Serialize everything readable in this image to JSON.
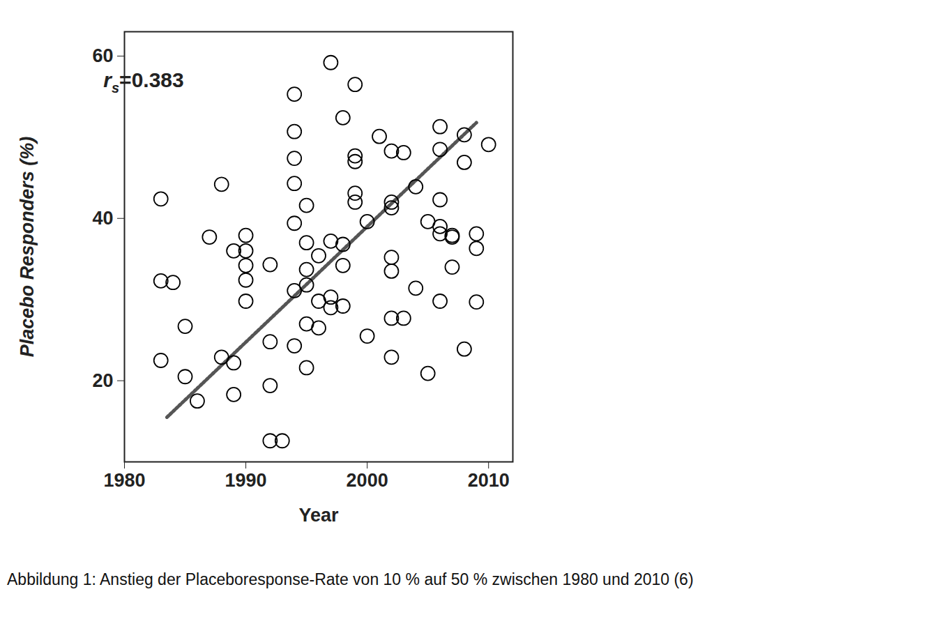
{
  "chart_data": {
    "type": "scatter",
    "xlabel": "Year",
    "ylabel": "Placebo Responders (%)",
    "caption": "Abbildung 1: Anstieg der Placeboresponse-Rate von 10 % auf 50 % zwischen 1980 und 2010 (6)",
    "annotation": {
      "symbol": "r",
      "subscript": "s",
      "text": "=0.383"
    },
    "marker": "open circle",
    "color": "#000000",
    "x": [
      1983,
      1983,
      1984,
      1983,
      1985,
      1985,
      1986,
      1987,
      1988,
      1988,
      1989,
      1989,
      1989,
      1990,
      1990,
      1990,
      1990,
      1990,
      1992,
      1992,
      1992,
      1992,
      1993,
      1994,
      1994,
      1994,
      1994,
      1994,
      1994,
      1994,
      1995,
      1995,
      1995,
      1995,
      1995,
      1995,
      1996,
      1996,
      1996,
      1997,
      1997,
      1997,
      1997,
      1998,
      1998,
      1998,
      1998,
      1999,
      1999,
      1999,
      1999,
      1999,
      2000,
      2000,
      2001,
      2002,
      2002,
      2002,
      2002,
      2002,
      2002,
      2002,
      2003,
      2003,
      2004,
      2004,
      2005,
      2005,
      2006,
      2006,
      2006,
      2006,
      2006,
      2006,
      2007,
      2007,
      2007,
      2008,
      2008,
      2008,
      2009,
      2009,
      2009,
      2010
    ],
    "values": [
      42.4,
      32.3,
      32.1,
      22.5,
      26.7,
      20.5,
      17.5,
      37.7,
      44.2,
      22.9,
      36,
      22.2,
      18.3,
      37.9,
      36,
      34.2,
      32.4,
      29.8,
      34.3,
      24.8,
      19.4,
      12.6,
      12.6,
      55.3,
      50.7,
      47.4,
      44.3,
      39.4,
      31.1,
      24.3,
      41.6,
      37,
      33.7,
      27,
      21.6,
      31.8,
      35.4,
      29.8,
      26.5,
      59.2,
      37.2,
      30.3,
      29,
      52.4,
      36.8,
      34.2,
      29.2,
      56.5,
      47.7,
      47,
      43.1,
      42,
      39.6,
      25.5,
      50.1,
      48.3,
      42,
      41.3,
      35.2,
      33.5,
      27.7,
      22.9,
      48.1,
      27.7,
      31.4,
      43.9,
      39.6,
      20.9,
      51.3,
      48.5,
      42.3,
      39,
      38.1,
      29.8,
      37.7,
      34,
      37.9,
      50.3,
      46.9,
      23.9,
      38.1,
      36.3,
      29.7,
      49.1
    ],
    "trend_line": {
      "x": [
        1983.5,
        2009
      ],
      "values": [
        15.5,
        51.8
      ],
      "line_style": "dotted",
      "color": "#555555"
    },
    "xlim": [
      1980,
      2012
    ],
    "ylim": [
      10,
      63
    ],
    "xticks": [
      1980,
      1990,
      2000,
      2010
    ],
    "yticks": [
      20,
      40,
      60
    ],
    "grid": false
  }
}
